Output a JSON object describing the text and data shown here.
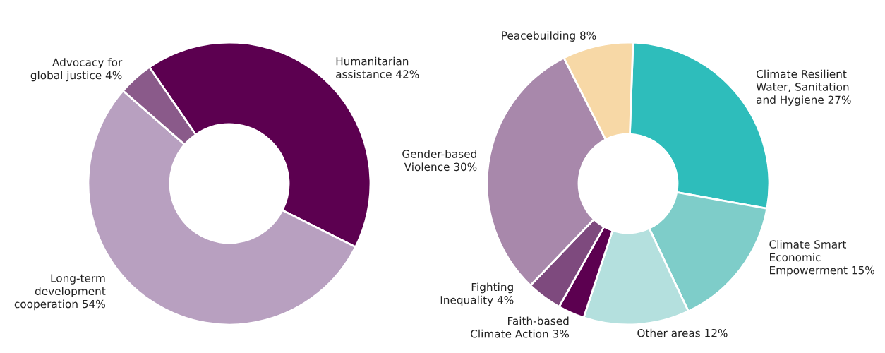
{
  "chart_data": [
    {
      "type": "donut",
      "categories": [
        "Humanitarian\nassistance",
        "Long-term\ndevelopment\ncooperation",
        "Advocacy for\nglobal justice"
      ],
      "values": [
        42,
        54,
        4
      ],
      "value_labels": [
        "42%",
        "54%",
        "4%"
      ],
      "colors": [
        "#5c0050",
        "#b8a0c0",
        "#8a5a8a"
      ]
    },
    {
      "type": "donut",
      "categories": [
        "Climate Resilient\nWater, Sanitation\nand Hygiene",
        "Climate Smart\nEconomic\nEmpowerment",
        "Other areas",
        "Faith-based\nClimate Action",
        "Fighting\nInequality",
        "Gender-based\nViolence",
        "Peacebuilding"
      ],
      "values": [
        27,
        15,
        12,
        3,
        4,
        30,
        8
      ],
      "value_labels": [
        "27%",
        "15%",
        "12%",
        "3%",
        "4%",
        "30%",
        "8%"
      ],
      "colors": [
        "#2ebdbb",
        "#7ecdc9",
        "#b4e0de",
        "#5c0050",
        "#7e4a7e",
        "#a888ab",
        "#f7d8a6"
      ]
    }
  ]
}
